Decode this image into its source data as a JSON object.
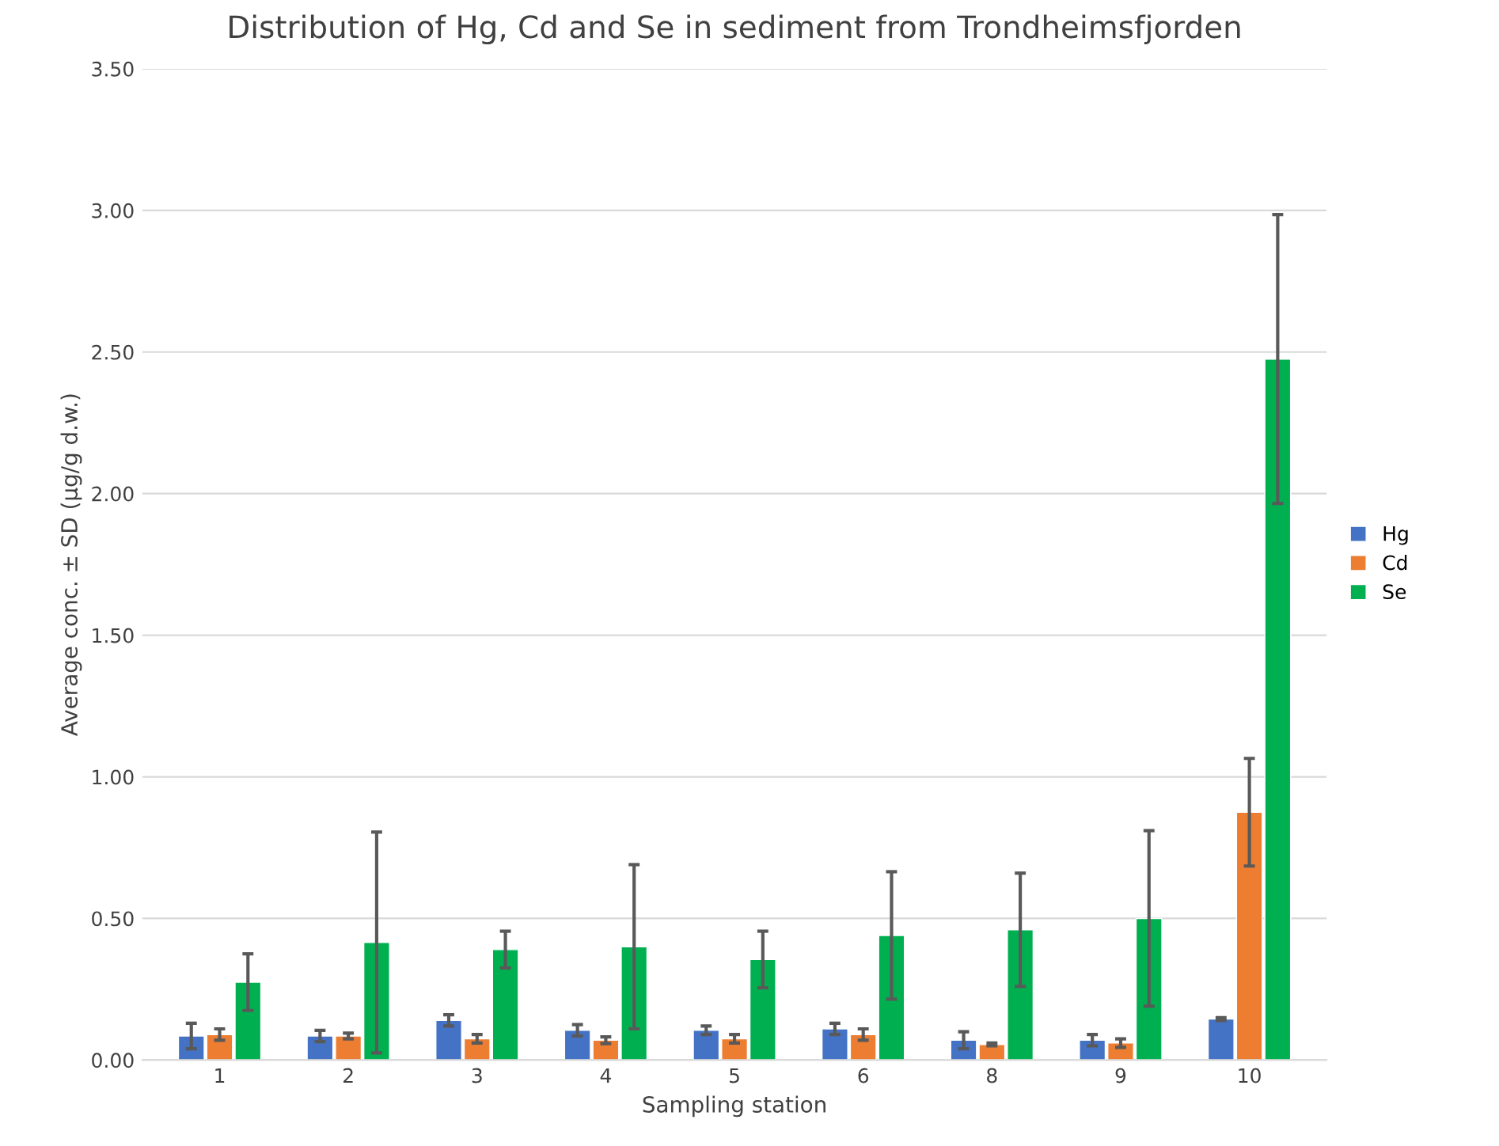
{
  "chart_data": {
    "type": "bar",
    "title": "Distribution of Hg, Cd and Se in sediment from Trondheimsfjorden",
    "xlabel": "Sampling station",
    "ylabel": "Average conc. ± SD (µg/g d.w.)",
    "categories": [
      "1",
      "2",
      "3",
      "4",
      "5",
      "6",
      "8",
      "9",
      "10"
    ],
    "series": [
      {
        "name": "Hg",
        "color": "#4472c4",
        "values": [
          0.085,
          0.085,
          0.14,
          0.105,
          0.105,
          0.11,
          0.07,
          0.07,
          0.145
        ],
        "errors": [
          0.045,
          0.02,
          0.02,
          0.02,
          0.015,
          0.02,
          0.03,
          0.02,
          0.005
        ]
      },
      {
        "name": "Cd",
        "color": "#ed7d31",
        "values": [
          0.09,
          0.085,
          0.075,
          0.07,
          0.075,
          0.09,
          0.055,
          0.06,
          0.875
        ],
        "errors": [
          0.02,
          0.01,
          0.015,
          0.012,
          0.015,
          0.02,
          0.005,
          0.015,
          0.19
        ]
      },
      {
        "name": "Se",
        "color": "#00b050",
        "values": [
          0.275,
          0.415,
          0.39,
          0.4,
          0.355,
          0.44,
          0.46,
          0.5,
          2.475
        ],
        "errors": [
          0.1,
          0.39,
          0.065,
          0.29,
          0.1,
          0.225,
          0.2,
          0.31,
          0.51
        ]
      }
    ],
    "ylim": [
      0,
      3.5
    ],
    "yticks": [
      {
        "value": 0,
        "label": "0.00"
      },
      {
        "value": 0.5,
        "label": "0.50"
      },
      {
        "value": 1,
        "label": "1.00"
      },
      {
        "value": 1.5,
        "label": "1.50"
      },
      {
        "value": 2,
        "label": "2.00"
      },
      {
        "value": 2.5,
        "label": "2.50"
      },
      {
        "value": 3,
        "label": "3.00"
      },
      {
        "value": 3.5,
        "label": "3.50"
      }
    ],
    "grid": "y",
    "legend": "right"
  }
}
